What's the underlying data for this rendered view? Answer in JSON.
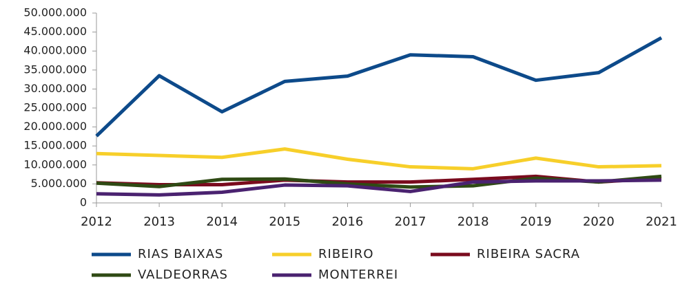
{
  "chart_data": {
    "type": "line",
    "categories": [
      "2012",
      "2013",
      "2014",
      "2015",
      "2016",
      "2017",
      "2018",
      "2019",
      "2020",
      "2021"
    ],
    "series": [
      {
        "name": "RIAS BAIXAS",
        "color": "#0d4a8a",
        "values": [
          17600000,
          33500000,
          24000000,
          32000000,
          33400000,
          39000000,
          38500000,
          32300000,
          34300000,
          43500000
        ]
      },
      {
        "name": "RIBEIRO",
        "color": "#f7cf2a",
        "values": [
          13000000,
          12500000,
          12000000,
          14200000,
          11500000,
          9500000,
          9000000,
          11800000,
          9500000,
          9800000
        ]
      },
      {
        "name": "RIBEIRA SACRA",
        "color": "#7a0b1e",
        "values": [
          5300000,
          4800000,
          4800000,
          6000000,
          5500000,
          5500000,
          6200000,
          7000000,
          5500000,
          6500000
        ]
      },
      {
        "name": "VALDEORRAS",
        "color": "#2f4a14",
        "values": [
          5200000,
          4300000,
          6200000,
          6300000,
          5000000,
          4200000,
          4500000,
          6500000,
          5500000,
          7000000
        ]
      },
      {
        "name": "MONTERREI",
        "color": "#4a2270",
        "values": [
          2400000,
          2100000,
          2800000,
          4700000,
          4500000,
          3000000,
          5500000,
          5800000,
          5800000,
          6000000
        ]
      }
    ],
    "ylim": [
      0,
      50000000
    ],
    "yticks": [
      0,
      {
        "value": 5000000,
        "label": "5.000.000"
      },
      {
        "value": 10000000,
        "label": "10.000.000"
      },
      {
        "value": 15000000,
        "label": "15.000.000"
      },
      {
        "value": 20000000,
        "label": "20.000.000"
      },
      {
        "value": 25000000,
        "label": "25.000.000"
      },
      {
        "value": 30000000,
        "label": "30.000.000"
      },
      {
        "value": 35000000,
        "label": "35.000.000"
      },
      {
        "value": 40000000,
        "label": "40.000.000"
      },
      {
        "value": 45000000,
        "label": "45.000.000"
      },
      {
        "value": 50000000,
        "label": "50.000.000"
      }
    ],
    "grid": false
  }
}
